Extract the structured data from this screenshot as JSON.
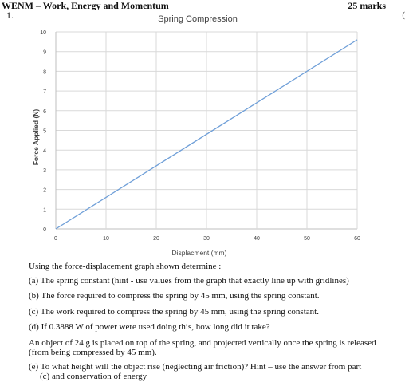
{
  "header": {
    "title": "WENM – Work, Energy and Momentum",
    "marks": "25 marks",
    "question_number": "1.",
    "edge_char": "("
  },
  "chart_data": {
    "type": "line",
    "title": "Spring Compression",
    "xlabel": "Displacment (mm)",
    "ylabel": "Force Applied (N)",
    "xlim": [
      0,
      60
    ],
    "ylim": [
      0,
      10
    ],
    "xticks": [
      0,
      10,
      20,
      30,
      40,
      50,
      60
    ],
    "yticks": [
      0,
      1,
      2,
      3,
      4,
      5,
      6,
      7,
      8,
      9,
      10
    ],
    "grid": true,
    "legend": "none",
    "series": [
      {
        "x": [
          0,
          60
        ],
        "y": [
          0,
          9.6
        ],
        "color": "#6f9fd8"
      }
    ]
  },
  "questions": {
    "intro": "Using the force-displacement graph shown determine :",
    "a": "(a) The spring constant (hint - use values from the graph that exactly line up with gridlines)",
    "b": "(b) The force required to compress the spring by 45 mm, using the spring constant.",
    "c": "(c) The work required to compress the spring by 45 mm, using the spring constant.",
    "d": "(d)  If 0.3888 W of power were used doing this, how long did it take?",
    "para": "An object of 24 g is placed on top of the spring, and projected vertically once the spring is released (from being compressed by 45 mm).",
    "e_line1": "(e) To what height will the object rise (neglecting air friction)? Hint – use the answer from part",
    "e_line2": "(c) and conservation of energy"
  }
}
